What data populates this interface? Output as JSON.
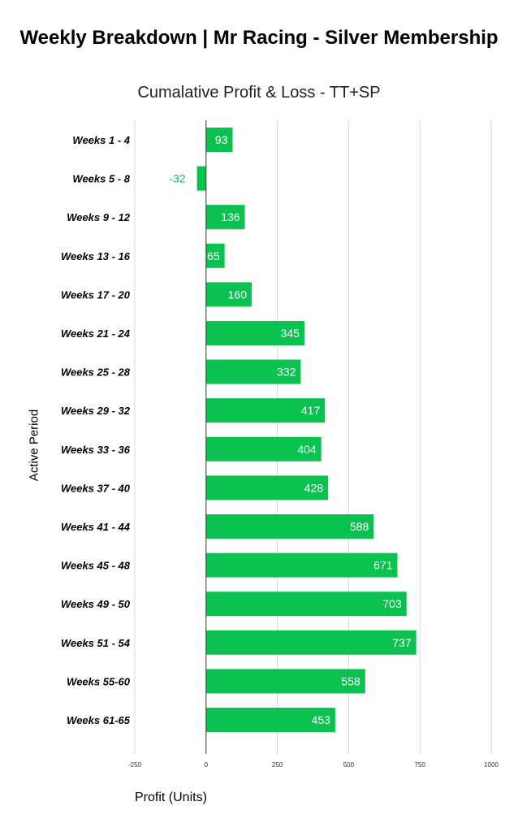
{
  "chart_data": {
    "type": "bar",
    "orientation": "horizontal",
    "title": "Weekly Breakdown | Mr Racing - Silver Membership",
    "subtitle": "Cumalative Profit & Loss - TT+SP",
    "xlabel": "Profit (Units)",
    "ylabel": "Active Period",
    "categories": [
      "Weeks 1 - 4",
      "Weeks 5 - 8",
      "Weeks 9 - 12",
      "Weeks 13 - 16",
      "Weeks 17 - 20",
      "Weeks 21 - 24",
      "Weeks 25 - 28",
      "Weeks 29 - 32",
      "Weeks 33 - 36",
      "Weeks 37 - 40",
      "Weeks 41 - 44",
      "Weeks 45 - 48",
      "Weeks 49 - 50",
      "Weeks 51 - 54",
      "Weeks 55-60",
      "Weeks 61-65"
    ],
    "values": [
      93,
      -32,
      136,
      65,
      160,
      345,
      332,
      417,
      404,
      428,
      588,
      671,
      703,
      737,
      558,
      453
    ],
    "xlim": [
      -250,
      1000
    ],
    "xticks": [
      -250,
      0,
      250,
      500,
      750,
      1000
    ],
    "grid": true,
    "legend": "none",
    "colors": {
      "bar": "#0bc251",
      "negative_label": "#0bc251",
      "positive_label": "#ffffff",
      "grid": "#d9d9d9",
      "axis": "#333333"
    }
  }
}
